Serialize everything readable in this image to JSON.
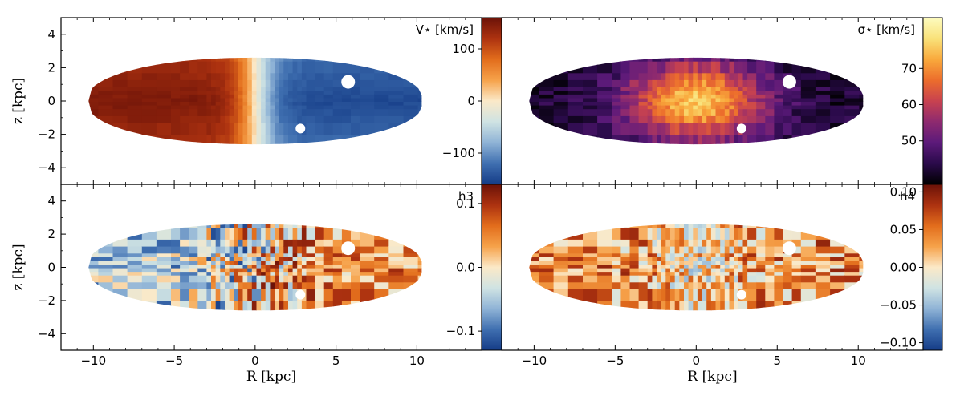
{
  "figure": {
    "xlabel": "R [kpc]",
    "ylabel": "z [kpc]"
  },
  "chart_data": [
    {
      "type": "heatmap",
      "title": "V⋆ [km/s]",
      "xlabel": "R [kpc]",
      "ylabel": "z [kpc]",
      "xlim": [
        -12,
        14
      ],
      "ylim": [
        -5,
        5
      ],
      "xticks": [
        -10,
        -5,
        0,
        5,
        10
      ],
      "xtick_labels": [
        "−10",
        "−5",
        "0",
        "5",
        "10"
      ],
      "yticks": [
        -4,
        -2,
        0,
        2,
        4
      ],
      "ytick_labels": [
        "−4",
        "−2",
        "0",
        "2",
        "4"
      ],
      "field": "rotation",
      "colormap": [
        "#153c87",
        "#3f6fb0",
        "#8fb3d6",
        "#cfe3e3",
        "#fbe9c8",
        "#f6a24a",
        "#e26d1c",
        "#ad3210",
        "#6b1208"
      ],
      "colorbar": {
        "range": [
          -160,
          160
        ],
        "ticks": [
          100,
          0,
          -100
        ],
        "tick_labels": [
          "100",
          "0",
          "−100"
        ]
      }
    },
    {
      "type": "heatmap",
      "title": "σ⋆ [km/s]",
      "xlabel": "R [kpc]",
      "ylabel": "",
      "xlim": [
        -12,
        14
      ],
      "ylim": [
        -5,
        5
      ],
      "xticks": [
        -10,
        -5,
        0,
        5,
        10
      ],
      "xtick_labels": [
        "−10",
        "−5",
        "0",
        "5",
        "10"
      ],
      "field": "dispersion",
      "colormap": [
        "#000000",
        "#2a0a4a",
        "#5c1a7a",
        "#8e2a6f",
        "#c8424f",
        "#ec6d2c",
        "#f9a93c",
        "#f9e27a",
        "#fdfcbf"
      ],
      "colorbar": {
        "range": [
          38,
          84
        ],
        "ticks": [
          70,
          60,
          50
        ],
        "tick_labels": [
          "70",
          "60",
          "50"
        ]
      }
    },
    {
      "type": "heatmap",
      "title": "h3",
      "xlabel": "R [kpc]",
      "ylabel": "z [kpc]",
      "xlim": [
        -12,
        14
      ],
      "ylim": [
        -5,
        5
      ],
      "xticks": [
        -10,
        -5,
        0,
        5,
        10
      ],
      "xtick_labels": [
        "−10",
        "−5",
        "0",
        "5",
        "10"
      ],
      "yticks": [
        -4,
        -2,
        0,
        2,
        4
      ],
      "ytick_labels": [
        "−4",
        "−2",
        "0",
        "2",
        "4"
      ],
      "field": "h3",
      "colormap": [
        "#153c87",
        "#3f6fb0",
        "#8fb3d6",
        "#cfe3e3",
        "#fbe9c8",
        "#f6a24a",
        "#e26d1c",
        "#ad3210",
        "#6b1208"
      ],
      "colorbar": {
        "range": [
          -0.13,
          0.13
        ],
        "ticks": [
          0.1,
          0.0,
          -0.1
        ],
        "tick_labels": [
          "0.1",
          "0.0",
          "−0.1"
        ]
      }
    },
    {
      "type": "heatmap",
      "title": "h4",
      "xlabel": "R [kpc]",
      "ylabel": "",
      "xlim": [
        -12,
        14
      ],
      "ylim": [
        -5,
        5
      ],
      "xticks": [
        -10,
        -5,
        0,
        5,
        10
      ],
      "xtick_labels": [
        "−10",
        "−5",
        "0",
        "5",
        "10"
      ],
      "field": "h4",
      "colormap": [
        "#153c87",
        "#3f6fb0",
        "#8fb3d6",
        "#cfe3e3",
        "#fbe9c8",
        "#f6a24a",
        "#e26d1c",
        "#ad3210",
        "#6b1208"
      ],
      "colorbar": {
        "range": [
          -0.11,
          0.11
        ],
        "ticks": [
          0.1,
          0.05,
          0.0,
          -0.05,
          -0.1
        ],
        "tick_labels": [
          "0.10",
          "0.05",
          "0.00",
          "−0.05",
          "−0.10"
        ]
      }
    }
  ]
}
